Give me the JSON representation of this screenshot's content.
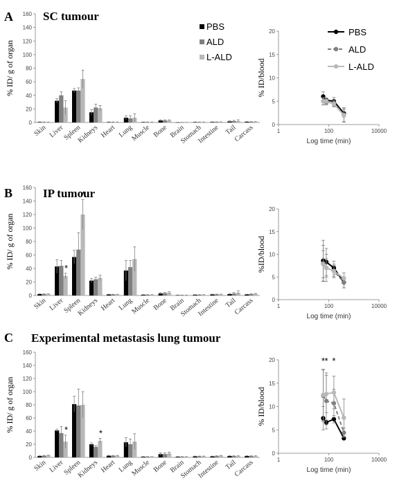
{
  "colors": {
    "pbs": "#000000",
    "ald": "#808080",
    "lald": "#b8b8b8",
    "axis": "#7f7f7f",
    "err": "#7f7f7f"
  },
  "chart_data": [
    {
      "panel_letter": "A",
      "panel_title": "SC tumour",
      "type": "bar",
      "ylabel": "% ID/ g of organ",
      "ylim": [
        0,
        160
      ],
      "yticks": [
        0,
        20,
        40,
        60,
        80,
        100,
        120,
        140,
        160
      ],
      "categories": [
        "Skin",
        "Liver",
        "Spleen",
        "Kidneys",
        "Heart",
        "Lung",
        "Muscle",
        "Bone",
        "Brain",
        "Stomach",
        "Intestine",
        "Tail",
        "Carcass"
      ],
      "legend_placement": "top-right",
      "series": [
        {
          "name": "PBS",
          "values": [
            0.6,
            32,
            47,
            15,
            0.5,
            7,
            0.5,
            3,
            0.2,
            0.5,
            0.7,
            1.5,
            1
          ],
          "errors": [
            0.3,
            3,
            3,
            4,
            0.3,
            3,
            0.3,
            1,
            0.1,
            0.3,
            0.3,
            1,
            0.3
          ]
        },
        {
          "name": "ALD",
          "values": [
            0.5,
            40,
            47,
            22,
            0.5,
            6,
            0.5,
            3,
            0.2,
            0.5,
            0.7,
            2,
            1
          ],
          "errors": [
            0.3,
            5,
            4,
            5,
            0.3,
            4,
            0.3,
            1,
            0.1,
            0.3,
            0.3,
            1,
            0.3
          ]
        },
        {
          "name": "L-ALD",
          "values": [
            0.5,
            22,
            64,
            21,
            0.5,
            7,
            0.5,
            3,
            0.2,
            0.5,
            0.7,
            2,
            1
          ],
          "errors": [
            0.3,
            10,
            13,
            4,
            0.3,
            6,
            0.3,
            1,
            0.1,
            0.3,
            0.3,
            2,
            0.3
          ]
        }
      ],
      "asterisks": []
    },
    {
      "panel_letter": "A",
      "type": "line",
      "ylabel": "% ID/blood",
      "xlabel": "Log time (min)",
      "xscale": "log",
      "xlim": [
        1,
        10000
      ],
      "xticks": [
        1,
        100,
        10000
      ],
      "ylim": [
        0,
        20
      ],
      "yticks": [
        0,
        5,
        10,
        15,
        20
      ],
      "legend_placement": "top-right",
      "x": [
        60,
        80,
        160,
        400
      ],
      "series": [
        {
          "name": "PBS",
          "values": [
            6,
            5.2,
            5,
            2.4
          ],
          "errors": [
            1,
            0.5,
            0.8,
            0.8
          ]
        },
        {
          "name": "ALD",
          "values": [
            5,
            4.8,
            4.6,
            2.1
          ],
          "errors": [
            0.8,
            0.6,
            0.7,
            1.5
          ]
        },
        {
          "name": "L-ALD",
          "values": [
            5,
            5,
            4.4,
            2
          ],
          "errors": [
            0.8,
            0.6,
            0.6,
            1.5
          ]
        }
      ],
      "asterisks": []
    },
    {
      "panel_letter": "B",
      "panel_title": "IP tumour",
      "type": "bar",
      "ylabel": "% ID/ g of organ",
      "ylim": [
        0,
        160
      ],
      "yticks": [
        0,
        20,
        40,
        60,
        80,
        100,
        120,
        140,
        160
      ],
      "categories": [
        "Skin",
        "Liver",
        "Spleen",
        "Kidneys",
        "Heart",
        "Lung",
        "Muscle",
        "Bone",
        "Brain",
        "Stomach",
        "Intestine",
        "Tail",
        "Carcass"
      ],
      "series": [
        {
          "name": "PBS",
          "values": [
            2,
            43,
            57,
            22,
            1.5,
            37,
            1,
            3,
            0.5,
            1,
            1.5,
            2,
            1.5
          ],
          "errors": [
            0.5,
            10,
            10,
            3,
            0.3,
            15,
            0.3,
            1,
            0.2,
            0.3,
            0.5,
            1,
            0.3
          ]
        },
        {
          "name": "ALD",
          "values": [
            2,
            44,
            68,
            24,
            1.5,
            42,
            1,
            3.5,
            0.5,
            1,
            1.5,
            3,
            2
          ],
          "errors": [
            0.5,
            8,
            25,
            3,
            0.3,
            10,
            0.3,
            1,
            0.2,
            0.3,
            0.5,
            1.5,
            0.5
          ]
        },
        {
          "name": "L-ALD",
          "values": [
            2,
            29,
            120,
            26,
            1.5,
            54,
            1,
            4,
            0.5,
            1,
            1.5,
            4,
            2.5
          ],
          "errors": [
            0.5,
            4,
            22,
            4,
            0.3,
            18,
            0.3,
            1.5,
            0.2,
            0.3,
            0.5,
            3,
            0.5
          ]
        }
      ],
      "asterisks": [
        {
          "category": "Liver",
          "series": "L-ALD"
        },
        {
          "category": "Spleen",
          "series": "L-ALD"
        }
      ]
    },
    {
      "panel_letter": "B",
      "type": "line",
      "ylabel": "%ID/blood",
      "xlabel": "Log time (min)",
      "xscale": "log",
      "xlim": [
        1,
        10000
      ],
      "xticks": [
        1,
        100,
        10000
      ],
      "ylim": [
        0,
        20
      ],
      "yticks": [
        0,
        5,
        10,
        15,
        20
      ],
      "x": [
        60,
        80,
        160,
        400
      ],
      "series": [
        {
          "name": "PBS",
          "values": [
            8.6,
            8.3,
            7,
            3.8
          ],
          "errors": [
            4.5,
            3,
            1.5,
            1.2
          ]
        },
        {
          "name": "ALD",
          "values": [
            8,
            7,
            6.3,
            3.8
          ],
          "errors": [
            4,
            3,
            1.5,
            1.2
          ]
        },
        {
          "name": "L-ALD",
          "values": [
            7.8,
            7,
            6.3,
            4.7
          ],
          "errors": [
            3,
            2,
            1.2,
            1.2
          ]
        }
      ],
      "asterisks": []
    },
    {
      "panel_letter": "C",
      "panel_title": "Experimental metastasis lung tumour",
      "type": "bar",
      "ylabel": "% ID/ g of organ",
      "ylim": [
        0,
        160
      ],
      "yticks": [
        0,
        20,
        40,
        60,
        80,
        100,
        120,
        140,
        160
      ],
      "categories": [
        "Skin",
        "Liver",
        "Spleen",
        "Kidneys",
        "Heart",
        "Lung",
        "Muscle",
        "Bone",
        "Brain",
        "Stomach",
        "Intestine",
        "Tail",
        "Carcass"
      ],
      "series": [
        {
          "name": "PBS",
          "values": [
            2,
            41,
            81,
            20,
            2.5,
            23,
            1,
            5,
            1,
            1.5,
            1.5,
            2,
            2
          ],
          "errors": [
            0.5,
            2,
            12,
            2,
            0.5,
            7,
            0.3,
            2,
            0.3,
            0.5,
            0.5,
            0.5,
            0.5
          ]
        },
        {
          "name": "ALD",
          "values": [
            2.5,
            37,
            79,
            16,
            2.5,
            20,
            1,
            5,
            1,
            1.5,
            2,
            2,
            2
          ],
          "errors": [
            0.5,
            10,
            25,
            2,
            0.5,
            8,
            0.3,
            2,
            0.3,
            0.5,
            0.5,
            0.5,
            0.5
          ]
        },
        {
          "name": "L-ALD",
          "values": [
            3,
            24,
            80,
            25,
            2.5,
            24,
            1,
            6,
            1,
            1.5,
            2.5,
            2,
            2
          ],
          "errors": [
            0.5,
            10,
            20,
            4,
            0.5,
            12,
            0.3,
            2,
            0.3,
            0.5,
            0.5,
            0.5,
            0.5
          ]
        }
      ],
      "asterisks": [
        {
          "category": "Liver",
          "series": "L-ALD"
        },
        {
          "category": "Kidneys",
          "series": "L-ALD"
        }
      ]
    },
    {
      "panel_letter": "C",
      "type": "line",
      "ylabel": "% ID/blood",
      "xlabel": "Log time (min)",
      "xscale": "log",
      "xlim": [
        1,
        10000
      ],
      "xticks": [
        1,
        100,
        10000
      ],
      "ylim": [
        0,
        20
      ],
      "yticks": [
        0,
        5,
        10,
        15,
        20
      ],
      "x": [
        60,
        80,
        160,
        400
      ],
      "series": [
        {
          "name": "PBS",
          "values": [
            7.5,
            6.6,
            7.3,
            3.2
          ],
          "errors": [
            2.5,
            0.5,
            0.8,
            0.3
          ]
        },
        {
          "name": "ALD",
          "values": [
            12.3,
            11.2,
            10.7,
            4.4
          ],
          "errors": [
            5.5,
            6,
            3,
            1
          ]
        },
        {
          "name": "L-ALD",
          "values": [
            12.5,
            12.7,
            13,
            7.6
          ],
          "errors": [
            5.5,
            4,
            3.5,
            4
          ]
        }
      ],
      "asterisks": [
        {
          "x": 60
        },
        {
          "x": 80
        },
        {
          "x": 160
        }
      ]
    }
  ]
}
